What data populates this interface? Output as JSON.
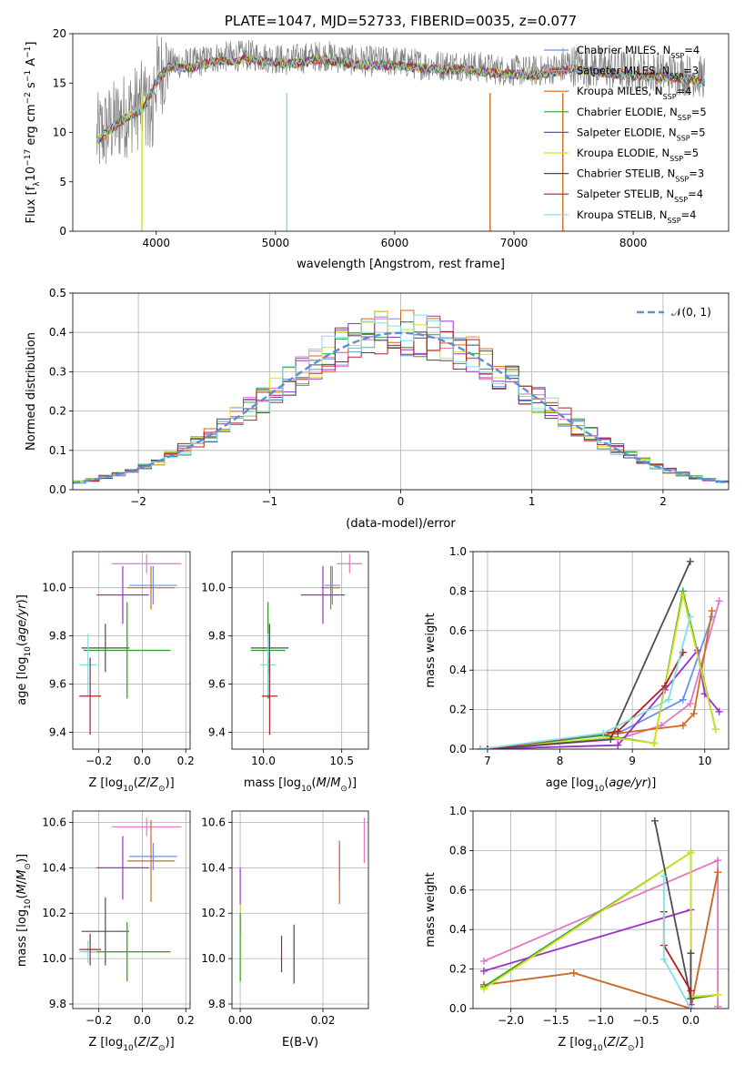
{
  "chart_data": [
    {
      "type": "line",
      "title": "PLATE=1047, MJD=52733, FIBERID=0035, z=0.077",
      "xlabel": "wavelength [Angstrom, rest frame]",
      "ylabel": "Flux [f_λ 10^-17 erg cm^-2 s^-1 A^-1]",
      "xlim": [
        3300,
        8800
      ],
      "ylim": [
        0,
        20
      ],
      "xticks": [
        "4000",
        "5000",
        "6000",
        "7000",
        "8000"
      ],
      "yticks": [
        "0",
        "5",
        "10",
        "15",
        "20"
      ],
      "legend_position": "right",
      "continuum": {
        "x": [
          3500,
          3700,
          3900,
          4000,
          4100,
          4300,
          4500,
          4800,
          5100,
          5400,
          5700,
          6000,
          6300,
          6600,
          6900,
          7200,
          7500,
          7800,
          8100,
          8400,
          8600
        ],
        "y": [
          9.5,
          11.5,
          13,
          15.5,
          17,
          17,
          17.6,
          17.8,
          17.3,
          17.8,
          17.2,
          17.2,
          16.8,
          16.8,
          16.3,
          16.2,
          16.8,
          16.4,
          16.1,
          15.9,
          15.6
        ]
      },
      "series": [
        {
          "name": "Chabrier MILES",
          "nssp": "4",
          "color": "#6495ed"
        },
        {
          "name": "Salpeter MILES",
          "nssp": "3",
          "color": "#e377c2"
        },
        {
          "name": "Kroupa MILES",
          "nssp": "4",
          "color": "#d2691e"
        },
        {
          "name": "Chabrier ELODIE",
          "nssp": "5",
          "color": "#2ca02c"
        },
        {
          "name": "Salpeter ELODIE",
          "nssp": "5",
          "color": "#9932cc"
        },
        {
          "name": "Kroupa ELODIE",
          "nssp": "5",
          "color": "#d4e020"
        },
        {
          "name": "Chabrier STELIB",
          "nssp": "3",
          "color": "#4d4d4d"
        },
        {
          "name": "Salpeter STELIB",
          "nssp": "4",
          "color": "#b22222"
        },
        {
          "name": "Kroupa STELIB",
          "nssp": "4",
          "color": "#7fdfe8"
        }
      ]
    },
    {
      "type": "histogram",
      "xlabel": "(data-model)/error",
      "ylabel": "Normed distribution",
      "xlim": [
        -2.5,
        2.5
      ],
      "ylim": [
        0,
        0.5
      ],
      "xticks": [
        "−2",
        "−1",
        "0",
        "1",
        "2"
      ],
      "yticks": [
        "0.0",
        "0.1",
        "0.2",
        "0.3",
        "0.4",
        "0.5"
      ],
      "grid": true,
      "legend": "𝒩(0, 1)",
      "legend_position": "top-right",
      "reference": {
        "name": "N(0,1)",
        "mean": 0,
        "sigma": 1,
        "color": "#5b8fd6"
      }
    },
    {
      "type": "errorbar",
      "xlabel": "Z [log10(Z/Z⊙)]",
      "ylabel": "age [log10(age/yr)]",
      "xlim": [
        -0.32,
        0.22
      ],
      "ylim": [
        9.33,
        10.15
      ],
      "xticks": [
        "−0.2",
        "0.0",
        "0.2"
      ],
      "yticks": [
        "9.4",
        "9.6",
        "9.8",
        "10.0"
      ],
      "points": [
        {
          "x": 0.02,
          "xerr": 0.16,
          "y": 10.1,
          "yerr": 0.04,
          "color": "#e377c2"
        },
        {
          "x": 0.05,
          "xerr": 0.11,
          "y": 10.01,
          "yerr": 0.08,
          "color": "#6495ed"
        },
        {
          "x": 0.04,
          "xerr": 0.11,
          "y": 10.0,
          "yerr": 0.09,
          "color": "#d2691e"
        },
        {
          "x": -0.09,
          "xerr": 0.12,
          "y": 9.97,
          "yerr": 0.12,
          "color": "#9932cc"
        },
        {
          "x": -0.17,
          "xerr": 0.11,
          "y": 9.75,
          "yerr": 0.1,
          "color": "#4d4d4d"
        },
        {
          "x": -0.07,
          "xerr": 0.2,
          "y": 9.74,
          "yerr": 0.2,
          "color": "#d4e020"
        },
        {
          "x": -0.07,
          "xerr": 0.2,
          "y": 9.74,
          "yerr": 0.2,
          "color": "#2ca02c"
        },
        {
          "x": -0.25,
          "xerr": 0.04,
          "y": 9.68,
          "yerr": 0.13,
          "color": "#7fdfe8"
        },
        {
          "x": -0.24,
          "xerr": 0.05,
          "y": 9.55,
          "yerr": 0.16,
          "color": "#b22222"
        }
      ]
    },
    {
      "type": "errorbar",
      "xlabel": "mass [log10(M/M⊙)]",
      "ylabel": "",
      "xlim": [
        9.8,
        10.67
      ],
      "ylim": [
        9.33,
        10.15
      ],
      "xticks": [
        "10.0",
        "10.5"
      ],
      "yticks": [
        "9.4",
        "9.6",
        "9.8",
        "10.0"
      ],
      "points": [
        {
          "x": 10.55,
          "xerr": 0.08,
          "y": 10.1,
          "yerr": 0.04,
          "color": "#e377c2"
        },
        {
          "x": 10.44,
          "xerr": 0.05,
          "y": 10.01,
          "yerr": 0.08,
          "color": "#6495ed"
        },
        {
          "x": 10.43,
          "xerr": 0.06,
          "y": 10.0,
          "yerr": 0.09,
          "color": "#d2691e"
        },
        {
          "x": 10.38,
          "xerr": 0.14,
          "y": 9.97,
          "yerr": 0.12,
          "color": "#9932cc"
        },
        {
          "x": 10.04,
          "xerr": 0.12,
          "y": 9.75,
          "yerr": 0.1,
          "color": "#4d4d4d"
        },
        {
          "x": 10.03,
          "xerr": 0.11,
          "y": 9.74,
          "yerr": 0.2,
          "color": "#d4e020"
        },
        {
          "x": 10.03,
          "xerr": 0.11,
          "y": 9.74,
          "yerr": 0.2,
          "color": "#2ca02c"
        },
        {
          "x": 10.03,
          "xerr": 0.05,
          "y": 9.68,
          "yerr": 0.13,
          "color": "#7fdfe8"
        },
        {
          "x": 10.04,
          "xerr": 0.05,
          "y": 9.55,
          "yerr": 0.16,
          "color": "#b22222"
        }
      ]
    },
    {
      "type": "line",
      "xlabel": "age [log10(age/yr)]",
      "ylabel": "mass weight",
      "xlim": [
        6.8,
        10.33
      ],
      "ylim": [
        0,
        1
      ],
      "xticks": [
        "7",
        "8",
        "9",
        "10"
      ],
      "yticks": [
        "0.0",
        "0.2",
        "0.4",
        "0.6",
        "0.8",
        "1.0"
      ],
      "grid": true,
      "series": [
        {
          "name": "Chabrier MILES",
          "color": "#6495ed",
          "x": [
            6.9,
            8.8,
            9.7,
            10.1
          ],
          "y": [
            0.0,
            0.08,
            0.25,
            0.67
          ]
        },
        {
          "name": "Salpeter MILES",
          "color": "#e377c2",
          "x": [
            7.0,
            8.8,
            9.4,
            9.8,
            10.2
          ],
          "y": [
            0.0,
            0.05,
            0.12,
            0.23,
            0.75
          ]
        },
        {
          "name": "Kroupa MILES",
          "color": "#d2691e",
          "x": [
            7.0,
            8.8,
            9.7,
            9.85,
            10.1
          ],
          "y": [
            0.0,
            0.08,
            0.12,
            0.18,
            0.7
          ]
        },
        {
          "name": "Chabrier ELODIE",
          "color": "#2ca02c",
          "x": [
            6.9,
            8.6,
            9.3,
            9.7,
            10.15
          ],
          "y": [
            0.0,
            0.07,
            0.03,
            0.8,
            0.1
          ]
        },
        {
          "name": "Salpeter ELODIE",
          "color": "#9932cc",
          "x": [
            6.9,
            8.8,
            9.45,
            9.9,
            10.0,
            10.2
          ],
          "y": [
            0.0,
            0.02,
            0.3,
            0.5,
            0.28,
            0.19
          ]
        },
        {
          "name": "Kroupa ELODIE",
          "color": "#d4e020",
          "x": [
            7.0,
            8.7,
            9.3,
            9.7,
            10.15
          ],
          "y": [
            0.0,
            0.06,
            0.03,
            0.78,
            0.1
          ]
        },
        {
          "name": "Chabrier STELIB",
          "color": "#4d4d4d",
          "x": [
            7.0,
            8.7,
            9.8
          ],
          "y": [
            0.0,
            0.05,
            0.95
          ]
        },
        {
          "name": "Salpeter STELIB",
          "color": "#b22222",
          "x": [
            7.0,
            8.8,
            9.45,
            9.7
          ],
          "y": [
            0.0,
            0.09,
            0.32,
            0.49
          ]
        },
        {
          "name": "Kroupa STELIB",
          "color": "#7fdfe8",
          "x": [
            6.9,
            8.6,
            9.5,
            9.8
          ],
          "y": [
            0.0,
            0.08,
            0.25,
            0.67
          ]
        }
      ]
    },
    {
      "type": "errorbar",
      "xlabel": "Z [log10(Z/Z⊙)]",
      "ylabel": "mass [log10(M/M⊙)]",
      "xlim": [
        -0.32,
        0.22
      ],
      "ylim": [
        9.78,
        10.65
      ],
      "xticks": [
        "−0.2",
        "0.0",
        "0.2"
      ],
      "yticks": [
        "9.8",
        "10.0",
        "10.2",
        "10.4",
        "10.6"
      ],
      "points": [
        {
          "x": 0.02,
          "xerr": 0.16,
          "y": 10.58,
          "yerr": 0.04,
          "color": "#e377c2"
        },
        {
          "x": 0.05,
          "xerr": 0.11,
          "y": 10.45,
          "yerr": 0.06,
          "color": "#6495ed"
        },
        {
          "x": 0.04,
          "xerr": 0.11,
          "y": 10.43,
          "yerr": 0.18,
          "color": "#d2691e"
        },
        {
          "x": -0.09,
          "xerr": 0.12,
          "y": 10.4,
          "yerr": 0.14,
          "color": "#9932cc"
        },
        {
          "x": -0.17,
          "xerr": 0.11,
          "y": 10.12,
          "yerr": 0.15,
          "color": "#4d4d4d"
        },
        {
          "x": -0.07,
          "xerr": 0.2,
          "y": 10.03,
          "yerr": 0.13,
          "color": "#d4e020"
        },
        {
          "x": -0.07,
          "xerr": 0.2,
          "y": 10.03,
          "yerr": 0.13,
          "color": "#2ca02c"
        },
        {
          "x": -0.25,
          "xerr": 0.04,
          "y": 10.03,
          "yerr": 0.05,
          "color": "#7fdfe8"
        },
        {
          "x": -0.24,
          "xerr": 0.05,
          "y": 10.04,
          "yerr": 0.07,
          "color": "#b22222"
        }
      ]
    },
    {
      "type": "errorbar",
      "xlabel": "E(B-V)",
      "ylabel": "",
      "xlim": [
        -0.002,
        0.031
      ],
      "ylim": [
        9.78,
        10.65
      ],
      "xticks": [
        "0.00",
        "0.02"
      ],
      "yticks": [
        "9.8",
        "10.0",
        "10.2",
        "10.4",
        "10.6"
      ],
      "points": [
        {
          "x": 0.03,
          "xerr": 0,
          "y": 10.52,
          "yerr": 0.1,
          "color": "#e377c2"
        },
        {
          "x": 0.024,
          "xerr": 0,
          "y": 10.42,
          "yerr": 0.08,
          "color": "#6495ed"
        },
        {
          "x": 0.024,
          "xerr": 0,
          "y": 10.38,
          "yerr": 0.14,
          "color": "#d2691e"
        },
        {
          "x": 0.0,
          "xerr": 0,
          "y": 10.25,
          "yerr": 0.15,
          "color": "#9932cc"
        },
        {
          "x": 0.0,
          "xerr": 0,
          "y": 10.07,
          "yerr": 0.17,
          "color": "#d4e020"
        },
        {
          "x": 0.0,
          "xerr": 0,
          "y": 10.05,
          "yerr": 0.15,
          "color": "#2ca02c"
        },
        {
          "x": 0.013,
          "xerr": 0,
          "y": 10.03,
          "yerr": 0.07,
          "color": "#7fdfe8"
        },
        {
          "x": 0.013,
          "xerr": 0,
          "y": 10.02,
          "yerr": 0.13,
          "color": "#4d4d4d"
        },
        {
          "x": 0.01,
          "xerr": 0,
          "y": 10.02,
          "yerr": 0.08,
          "color": "#b22222"
        }
      ]
    },
    {
      "type": "line",
      "xlabel": "Z [log10(Z/Z⊙)]",
      "ylabel": "mass weight",
      "xlim": [
        -2.42,
        0.42
      ],
      "ylim": [
        0,
        1
      ],
      "xticks": [
        "−2.0",
        "−1.5",
        "−1.0",
        "−0.5",
        "0.0"
      ],
      "yticks": [
        "0.0",
        "0.2",
        "0.4",
        "0.6",
        "0.8",
        "1.0"
      ],
      "grid": true,
      "series": [
        {
          "name": "Chabrier MILES",
          "color": "#6495ed",
          "x": [
            -2.3,
            -1.3,
            0.0,
            0.3
          ],
          "y": [
            0.12,
            0.18,
            0.0,
            0.69
          ]
        },
        {
          "name": "Salpeter MILES",
          "color": "#e377c2",
          "x": [
            -2.3,
            0.3,
            0.3
          ],
          "y": [
            0.24,
            0.75,
            0.01
          ]
        },
        {
          "name": "Kroupa MILES",
          "color": "#d2691e",
          "x": [
            -2.3,
            -1.3,
            0.0,
            0.3
          ],
          "y": [
            0.12,
            0.18,
            0.0,
            0.69
          ]
        },
        {
          "name": "Chabrier ELODIE",
          "color": "#2ca02c",
          "x": [
            -2.3,
            0.0,
            0.0,
            0.3
          ],
          "y": [
            0.11,
            0.79,
            0.05,
            0.07
          ]
        },
        {
          "name": "Salpeter ELODIE",
          "color": "#9932cc",
          "x": [
            -2.3,
            0.0,
            0.0
          ],
          "y": [
            0.19,
            0.5,
            0.02
          ]
        },
        {
          "name": "Kroupa ELODIE",
          "color": "#d4e020",
          "x": [
            -2.3,
            0.0,
            0.0,
            0.3
          ],
          "y": [
            0.1,
            0.79,
            0.06,
            0.07
          ]
        },
        {
          "name": "Chabrier STELIB",
          "color": "#4d4d4d",
          "x": [
            -0.4,
            0.0,
            0.0
          ],
          "y": [
            0.95,
            0.05,
            0.28
          ]
        },
        {
          "name": "Salpeter STELIB",
          "color": "#b22222",
          "x": [
            -0.3,
            -0.3,
            0.0
          ],
          "y": [
            0.49,
            0.32,
            0.09
          ]
        },
        {
          "name": "Kroupa STELIB",
          "color": "#7fdfe8",
          "x": [
            -0.3,
            -0.3,
            0.0
          ],
          "y": [
            0.67,
            0.25,
            0.0
          ]
        }
      ]
    }
  ]
}
